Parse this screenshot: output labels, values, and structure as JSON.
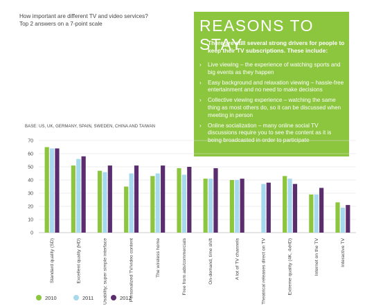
{
  "question": {
    "line1": "How important are different TV and video services?",
    "line2": "Top 2 answers on a 7-point scale"
  },
  "callout": {
    "title": "REASONS TO STAY",
    "intro": "There are still several strong drivers for people to keep their TV subscriptions. These include:",
    "items": [
      "Live viewing – the experience of watching sports and big events as they happen",
      "Easy background and relaxation viewing – hassle-free entertainment and no need to make decisions",
      "Collective viewing experience – watching the same thing as most others do, so it can be discussed when meeting in person",
      "Online socialization – many online social TV discussions require you to see the content as it is being broadcasted in order to participate"
    ],
    "bullet_icon": "arrow-right-icon"
  },
  "base_note": "BASE: US, UK, GERMANY, SPAIN, SWEDEN, CHINA AND TAIWAN",
  "chart_data": {
    "type": "bar",
    "ylim": [
      0,
      70
    ],
    "yticks": [
      0,
      10,
      20,
      30,
      40,
      50,
      60,
      70
    ],
    "grid": true,
    "legend_placement": "bottom-left",
    "categories": [
      "Standard quality (SD)",
      "Excellent quality (HD)",
      "Usability; super simple interface",
      "Personalized TV/video content",
      "The wireless home",
      "Free from ads/commercials",
      "On-demand, time shift",
      "A lot of TV channels",
      "Theatrical releases direct on TV",
      "Extreme quality (4K, 4xHD)",
      "Internet on the TV",
      "Interactive TV"
    ],
    "series": [
      {
        "name": "2010",
        "color": "#8cc63f",
        "values": [
          65,
          51,
          47,
          35,
          43,
          49,
          41,
          40,
          null,
          43,
          29,
          23
        ]
      },
      {
        "name": "2011",
        "color": "#a7d9ee",
        "values": [
          64,
          56,
          46,
          45,
          45,
          44,
          41,
          40,
          37,
          41,
          29,
          19
        ]
      },
      {
        "name": "2012",
        "color": "#5c2d6e",
        "values": [
          64,
          58,
          51,
          51,
          51,
          50,
          49,
          41,
          38,
          37,
          34,
          21
        ]
      }
    ]
  }
}
